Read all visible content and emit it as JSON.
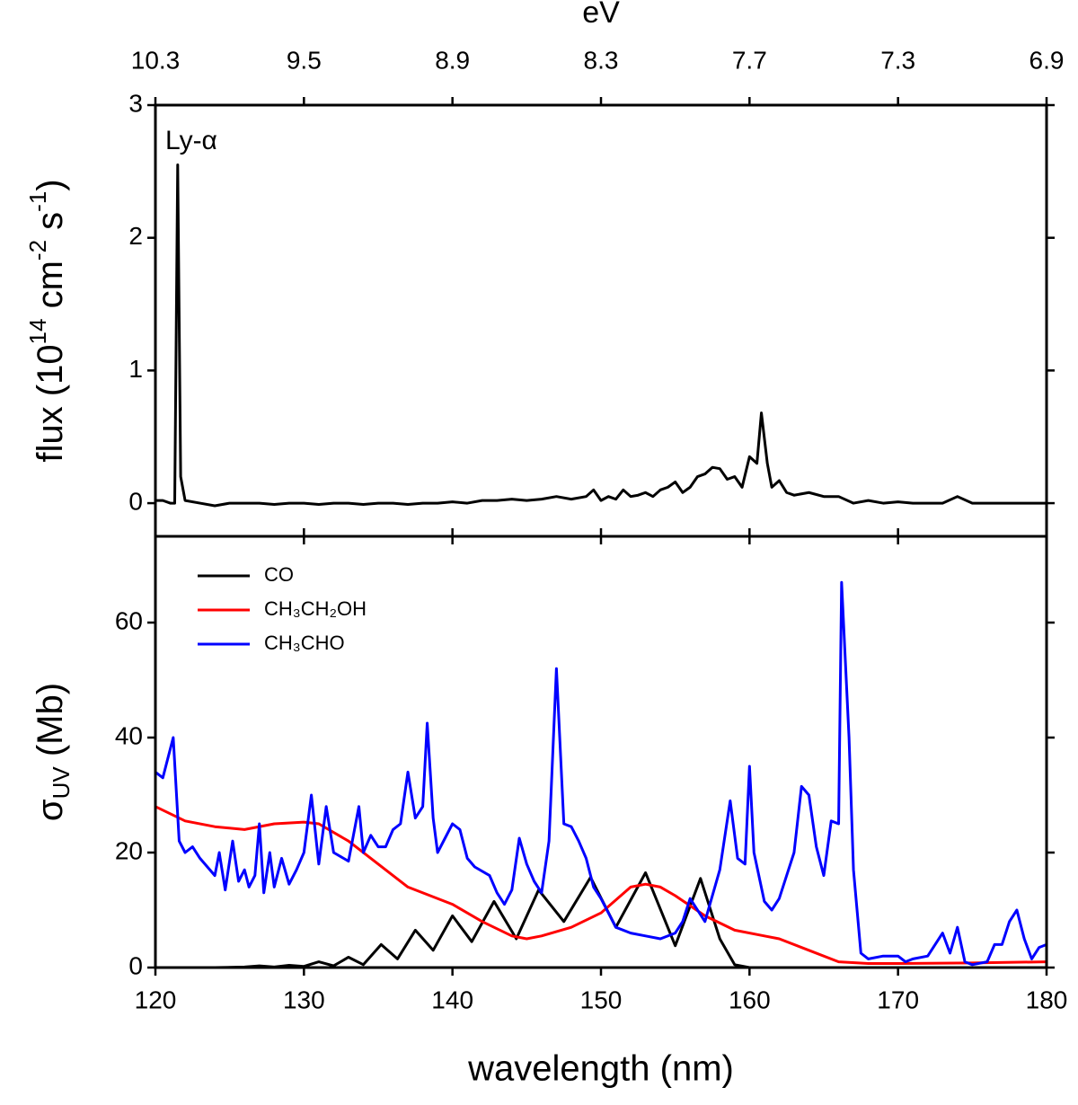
{
  "chart_data": [
    {
      "type": "line",
      "x2label": "eV",
      "x2ticks": [
        {
          "value": 120,
          "label": "10.3"
        },
        {
          "value": 130,
          "label": "9.5"
        },
        {
          "value": 140,
          "label": "8.9"
        },
        {
          "value": 150,
          "label": "8.3"
        },
        {
          "value": 160,
          "label": "7.7"
        },
        {
          "value": 170,
          "label": "7.3"
        },
        {
          "value": 180,
          "label": "6.9"
        }
      ],
      "ylabel": [
        "flux (10",
        "14",
        " cm",
        "-2",
        " s",
        "-1",
        ")"
      ],
      "annotation": "Ly-α",
      "xlim": [
        120,
        180
      ],
      "ylim": [
        -0.25,
        3
      ],
      "yticks": [
        0,
        1,
        2,
        3
      ],
      "series": [
        {
          "color": "#000000",
          "x": [
            120,
            120.5,
            121,
            121.3,
            121.5,
            121.7,
            122,
            123,
            124,
            125,
            126,
            127,
            128,
            129,
            130,
            131,
            132,
            133,
            134,
            135,
            136,
            137,
            138,
            139,
            140,
            141,
            142,
            143,
            144,
            145,
            146,
            147,
            148,
            149,
            149.5,
            150,
            150.5,
            151,
            151.5,
            152,
            152.5,
            153,
            153.5,
            154,
            154.5,
            155,
            155.5,
            156,
            156.5,
            157,
            157.5,
            158,
            158.5,
            159,
            159.5,
            160,
            160.5,
            160.8,
            161.2,
            161.5,
            162,
            162.5,
            163,
            164,
            165,
            166,
            167,
            168,
            169,
            170,
            171,
            172,
            173,
            174,
            175,
            176,
            177,
            178,
            179,
            180
          ],
          "values": [
            0.02,
            0.02,
            0,
            0,
            2.55,
            0.2,
            0.02,
            0,
            -0.02,
            0,
            0,
            0,
            -0.01,
            0,
            0,
            -0.01,
            0,
            0,
            -0.01,
            0,
            0,
            -0.01,
            0,
            0,
            0.01,
            0,
            0.02,
            0.02,
            0.03,
            0.02,
            0.03,
            0.05,
            0.03,
            0.05,
            0.1,
            0.02,
            0.05,
            0.03,
            0.1,
            0.05,
            0.06,
            0.08,
            0.05,
            0.1,
            0.12,
            0.16,
            0.08,
            0.12,
            0.2,
            0.22,
            0.27,
            0.26,
            0.18,
            0.2,
            0.12,
            0.35,
            0.3,
            0.68,
            0.3,
            0.12,
            0.17,
            0.08,
            0.06,
            0.08,
            0.05,
            0.05,
            0,
            0.02,
            0,
            0.01,
            0,
            0,
            0,
            0.05,
            0,
            0,
            0,
            0,
            0,
            0
          ]
        }
      ]
    },
    {
      "type": "line",
      "xlabel": "wavelength (nm)",
      "ylabel": [
        "σ",
        "UV",
        " (Mb)"
      ],
      "xlim": [
        120,
        180
      ],
      "xticks": [
        120,
        130,
        140,
        150,
        160,
        170,
        180
      ],
      "ylim": [
        0,
        75
      ],
      "yticks": [
        0,
        20,
        40,
        60
      ],
      "legend": "upper left",
      "series": [
        {
          "name": "CO",
          "color": "#000000",
          "x": [
            120,
            124,
            126,
            127,
            128,
            129,
            130,
            131,
            132,
            133,
            134,
            135.2,
            136.3,
            137.5,
            138.7,
            140,
            141.3,
            142.8,
            144.3,
            145.8,
            147.5,
            149.3,
            151,
            153,
            155,
            156.7,
            158,
            159,
            160,
            180
          ],
          "values": [
            0,
            0,
            0.1,
            0.3,
            0.1,
            0.4,
            0.2,
            1,
            0.3,
            1.8,
            0.5,
            4,
            1.5,
            6.5,
            3,
            9,
            4.5,
            11.5,
            5,
            13.5,
            8,
            15.7,
            7,
            16.5,
            3.8,
            15.5,
            5,
            0.5,
            0,
            0
          ]
        },
        {
          "name": "CH₃CH₂OH",
          "color": "#ff0000",
          "x": [
            120,
            122,
            124,
            126,
            128,
            130,
            131,
            133,
            135,
            137,
            140,
            142,
            144,
            145,
            146,
            148,
            150,
            152,
            153,
            154,
            155,
            157,
            159,
            161,
            162,
            164,
            166,
            168,
            170,
            175,
            180
          ],
          "values": [
            28,
            25.5,
            24.5,
            24,
            25,
            25.3,
            25,
            22,
            18,
            14,
            11,
            8,
            5.5,
            5,
            5.5,
            7,
            9.5,
            14,
            14.5,
            14,
            12.5,
            9,
            6.5,
            5.5,
            5,
            3,
            1,
            0.7,
            0.7,
            0.8,
            1
          ]
        },
        {
          "name": "CH₃CHO",
          "color": "#0000ff",
          "x": [
            120,
            120.5,
            121,
            121.2,
            121.6,
            122,
            122.5,
            123,
            123.5,
            124,
            124.3,
            124.7,
            125.2,
            125.6,
            126,
            126.3,
            126.7,
            127,
            127.3,
            127.7,
            128,
            128.5,
            129,
            129.5,
            130,
            130.5,
            131,
            131.5,
            132,
            133,
            133.7,
            134,
            134.5,
            135,
            135.5,
            136,
            136.5,
            137,
            137.5,
            138,
            138.3,
            138.7,
            139,
            140,
            140.5,
            141,
            141.5,
            142.5,
            143,
            143.5,
            144,
            144.5,
            145,
            145.5,
            146,
            146.5,
            147,
            147.5,
            148,
            148.5,
            149,
            149.5,
            150,
            150.5,
            151,
            152,
            153,
            154,
            155,
            155.5,
            156,
            157,
            158,
            158.7,
            159.2,
            159.7,
            160,
            160.3,
            161,
            161.5,
            162,
            162.5,
            163,
            163.5,
            164,
            164.5,
            165,
            165.5,
            166,
            166.2,
            166.7,
            167,
            167.5,
            168,
            169,
            170,
            170.5,
            171,
            172,
            173,
            173.5,
            174,
            174.5,
            175,
            176,
            176.5,
            177,
            177.5,
            178,
            178.5,
            179,
            179.5,
            180
          ],
          "values": [
            34,
            33,
            38,
            40,
            22,
            20,
            21,
            19,
            17.5,
            16,
            20,
            13.5,
            22,
            15,
            17,
            14,
            16,
            25,
            13,
            20,
            14,
            19,
            14.5,
            17,
            20,
            30,
            18,
            28,
            20,
            18.5,
            28,
            20,
            23,
            21,
            21,
            24,
            25,
            34,
            26,
            28,
            42.5,
            26,
            20,
            25,
            24,
            19,
            17.5,
            16,
            13,
            11,
            13.5,
            22.5,
            18,
            15,
            13,
            22,
            52,
            25,
            24.5,
            22,
            19,
            14,
            12,
            9.5,
            7,
            6,
            5.5,
            5,
            6,
            8,
            12,
            8,
            17,
            29,
            19,
            18,
            35,
            20,
            11.5,
            10,
            12,
            16,
            20,
            31.5,
            30,
            21,
            16,
            25.5,
            25,
            67,
            40,
            17,
            2.5,
            1.5,
            2,
            2,
            1,
            1.5,
            2,
            6,
            2.5,
            7,
            1,
            0.5,
            1,
            4,
            4,
            8,
            10,
            5,
            1.5,
            3.5,
            4
          ]
        }
      ]
    }
  ]
}
